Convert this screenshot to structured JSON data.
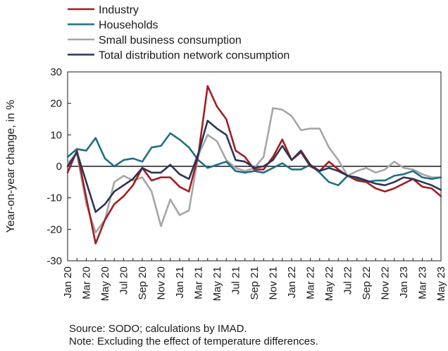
{
  "chart_data": {
    "type": "line",
    "xlabel": "",
    "ylabel": "Year-on-year change, in %",
    "ylim": [
      -30,
      30
    ],
    "yticks": [
      -30,
      -20,
      -10,
      0,
      10,
      20,
      30
    ],
    "grid": false,
    "legend_position": "top-left",
    "x_tick_labels": [
      "Jan 20",
      "Mar 20",
      "May 20",
      "Jul 20",
      "Sep 20",
      "Nov 20",
      "Jan 21",
      "Mar 21",
      "May 21",
      "Jul 21",
      "Sep 21",
      "Nov 21",
      "Jan 22",
      "Mar 22",
      "May 22",
      "Jul 22",
      "Sep 22",
      "Nov 22",
      "Jan 23",
      "Mar 23",
      "May 23"
    ],
    "x": [
      "Jan 20",
      "Feb 20",
      "Mar 20",
      "Apr 20",
      "May 20",
      "Jun 20",
      "Jul 20",
      "Aug 20",
      "Sep 20",
      "Oct 20",
      "Nov 20",
      "Dec 20",
      "Jan 21",
      "Feb 21",
      "Mar 21",
      "Apr 21",
      "May 21",
      "Jun 21",
      "Jul 21",
      "Aug 21",
      "Sep 21",
      "Oct 21",
      "Nov 21",
      "Dec 21",
      "Jan 22",
      "Feb 22",
      "Mar 22",
      "Apr 22",
      "May 22",
      "Jun 22",
      "Jul 22",
      "Aug 22",
      "Sep 22",
      "Oct 22",
      "Nov 22",
      "Dec 22",
      "Jan 23",
      "Feb 23",
      "Mar 23",
      "Apr 23",
      "May 23"
    ],
    "series": [
      {
        "name": "Industry",
        "color": "#a31d21",
        "values": [
          -2,
          5,
          -10,
          -24.5,
          -17,
          -12,
          -9.5,
          -6,
          -0.5,
          -4.5,
          -3.5,
          -3.5,
          -6.5,
          -8,
          3.5,
          25.5,
          19,
          15,
          5,
          3,
          -1,
          -1,
          3,
          8.5,
          2,
          4.5,
          0,
          -1.5,
          1.5,
          -1,
          -3,
          -4.5,
          -5,
          -7,
          -8,
          -7,
          -5.5,
          -4,
          -6.5,
          -7,
          -9.5
        ]
      },
      {
        "name": "Households",
        "color": "#1e7085",
        "values": [
          3,
          5.5,
          5,
          9,
          2.5,
          0,
          2,
          2.5,
          1.5,
          6,
          6.5,
          10.5,
          8.5,
          6,
          2,
          -0.5,
          0.5,
          1.5,
          -1.5,
          -2,
          -1.5,
          -2,
          -0.5,
          1,
          -1,
          -1,
          0.5,
          -2,
          -5,
          -6,
          -3,
          -4,
          -5,
          -4.5,
          -4.5,
          -3,
          -2.5,
          -1.5,
          -3.5,
          -4,
          -3.5
        ]
      },
      {
        "name": "Small business consumption",
        "color": "#a6a6a6",
        "values": [
          1,
          4,
          -12,
          -21,
          -17,
          -5,
          -3,
          -4.5,
          -3.5,
          -8,
          -19,
          -10.5,
          -15.5,
          -14,
          3.5,
          10,
          8,
          2,
          -0.5,
          -1.5,
          -0.5,
          3,
          18.5,
          18,
          16,
          11.5,
          12,
          12,
          6,
          2,
          -3,
          -1.5,
          -0.5,
          -2,
          -1,
          1.5,
          -0.5,
          -1,
          -2.5,
          -3.5,
          -3.5
        ]
      },
      {
        "name": "Total distribution network consumption",
        "color": "#2c3556",
        "values": [
          0,
          4.5,
          -5,
          -14.5,
          -12,
          -8,
          -6,
          -4,
          -0.5,
          -2,
          -2,
          0.5,
          -2.5,
          -4,
          4,
          14.5,
          12,
          10,
          2,
          1.5,
          -0.5,
          0,
          2,
          6.5,
          2,
          5,
          0.5,
          -1.5,
          -0.5,
          -1.5,
          -3,
          -3.5,
          -4.5,
          -5.5,
          -6,
          -5,
          -3.5,
          -4,
          -5,
          -6,
          -7.5
        ]
      }
    ]
  },
  "notes": {
    "source": "Source: SODO; calculations by IMAD.",
    "note": "Note: Excluding the effect of temperature differences."
  }
}
